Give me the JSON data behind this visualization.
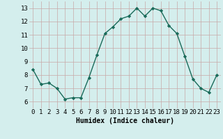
{
  "x": [
    0,
    1,
    2,
    3,
    4,
    5,
    6,
    7,
    8,
    9,
    10,
    11,
    12,
    13,
    14,
    15,
    16,
    17,
    18,
    19,
    20,
    21,
    22,
    23
  ],
  "y": [
    8.4,
    7.3,
    7.4,
    7.0,
    6.2,
    6.3,
    6.3,
    7.8,
    9.5,
    11.1,
    11.6,
    12.2,
    12.4,
    13.0,
    12.4,
    13.0,
    12.8,
    11.7,
    11.1,
    9.4,
    7.7,
    7.0,
    6.7,
    8.0
  ],
  "line_color": "#1a6b5a",
  "marker": "D",
  "marker_size": 2.2,
  "line_width": 1.0,
  "xlabel": "Humidex (Indice chaleur)",
  "xlabel_fontsize": 7,
  "xlim": [
    -0.5,
    23.5
  ],
  "ylim": [
    5.5,
    13.5
  ],
  "yticks": [
    6,
    7,
    8,
    9,
    10,
    11,
    12,
    13
  ],
  "xticks": [
    0,
    1,
    2,
    3,
    4,
    5,
    6,
    7,
    8,
    9,
    10,
    11,
    12,
    13,
    14,
    15,
    16,
    17,
    18,
    19,
    20,
    21,
    22,
    23
  ],
  "grid_color": "#c8a8a8",
  "bg_color": "#d4eeed",
  "tick_fontsize": 6.5
}
